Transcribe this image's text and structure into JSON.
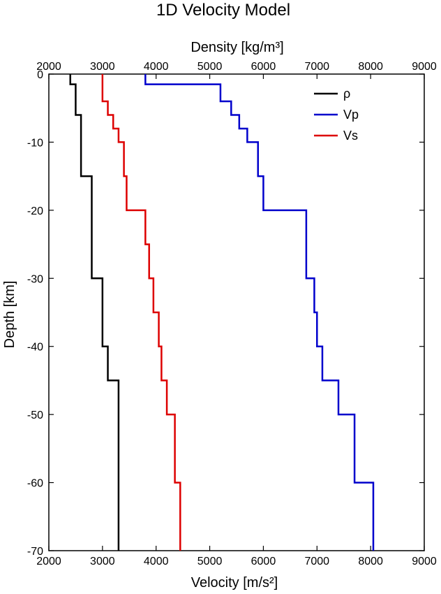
{
  "chart_data": {
    "type": "line",
    "title": "1D Velocity Model",
    "xlabel": "Velocity [m/s²]",
    "x2label": "Density [kg/m³]",
    "ylabel": "Depth [km]",
    "xlim": [
      2000,
      9000
    ],
    "ylim": [
      -70,
      0
    ],
    "xticks": [
      2000,
      3000,
      4000,
      5000,
      6000,
      7000,
      8000,
      9000
    ],
    "yticks": [
      0,
      -10,
      -20,
      -30,
      -40,
      -50,
      -60,
      -70
    ],
    "grid": false,
    "legend_position": "top-right",
    "series": [
      {
        "name": "ρ",
        "color": "#000000",
        "points": [
          [
            2400,
            0
          ],
          [
            2400,
            -1.5
          ],
          [
            2500,
            -1.5
          ],
          [
            2500,
            -6
          ],
          [
            2600,
            -6
          ],
          [
            2600,
            -15
          ],
          [
            2800,
            -15
          ],
          [
            2800,
            -30
          ],
          [
            3000,
            -30
          ],
          [
            3000,
            -40
          ],
          [
            3100,
            -40
          ],
          [
            3100,
            -45
          ],
          [
            3300,
            -45
          ],
          [
            3300,
            -70
          ]
        ]
      },
      {
        "name": "Vp",
        "color": "#0000cc",
        "points": [
          [
            3800,
            0
          ],
          [
            3800,
            -1.5
          ],
          [
            5200,
            -1.5
          ],
          [
            5200,
            -4
          ],
          [
            5400,
            -4
          ],
          [
            5400,
            -6
          ],
          [
            5550,
            -6
          ],
          [
            5550,
            -8
          ],
          [
            5700,
            -8
          ],
          [
            5700,
            -10
          ],
          [
            5900,
            -10
          ],
          [
            5900,
            -15
          ],
          [
            6000,
            -15
          ],
          [
            6000,
            -20
          ],
          [
            6800,
            -20
          ],
          [
            6800,
            -30
          ],
          [
            6950,
            -30
          ],
          [
            6950,
            -35
          ],
          [
            7000,
            -35
          ],
          [
            7000,
            -40
          ],
          [
            7100,
            -40
          ],
          [
            7100,
            -45
          ],
          [
            7400,
            -45
          ],
          [
            7400,
            -50
          ],
          [
            7700,
            -50
          ],
          [
            7700,
            -60
          ],
          [
            8050,
            -60
          ],
          [
            8050,
            -70
          ]
        ]
      },
      {
        "name": "Vs",
        "color": "#dd0000",
        "points": [
          [
            3000,
            0
          ],
          [
            3000,
            -4
          ],
          [
            3100,
            -4
          ],
          [
            3100,
            -6
          ],
          [
            3200,
            -6
          ],
          [
            3200,
            -8
          ],
          [
            3300,
            -8
          ],
          [
            3300,
            -10
          ],
          [
            3400,
            -10
          ],
          [
            3400,
            -15
          ],
          [
            3450,
            -15
          ],
          [
            3450,
            -20
          ],
          [
            3800,
            -20
          ],
          [
            3800,
            -25
          ],
          [
            3870,
            -25
          ],
          [
            3870,
            -30
          ],
          [
            3950,
            -30
          ],
          [
            3950,
            -35
          ],
          [
            4050,
            -35
          ],
          [
            4050,
            -40
          ],
          [
            4100,
            -40
          ],
          [
            4100,
            -45
          ],
          [
            4200,
            -45
          ],
          [
            4200,
            -50
          ],
          [
            4350,
            -50
          ],
          [
            4350,
            -60
          ],
          [
            4450,
            -60
          ],
          [
            4450,
            -70
          ]
        ]
      }
    ]
  }
}
